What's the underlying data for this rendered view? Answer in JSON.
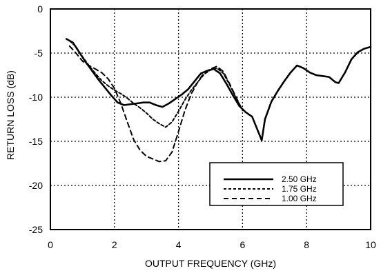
{
  "chart_data": {
    "type": "line",
    "xlabel": "OUTPUT FREQUENCY (GHz)",
    "ylabel": "RETURN LOSS (dB)",
    "xlim": [
      0,
      10
    ],
    "ylim": [
      -25,
      0
    ],
    "x_ticks": [
      "0",
      "2",
      "4",
      "6",
      "8",
      "10"
    ],
    "y_ticks": [
      "0",
      "-5",
      "-10",
      "-15",
      "-20",
      "-25"
    ],
    "grid": true,
    "legend_position": "bottom-right",
    "series": [
      {
        "name": "2.50 GHz",
        "style": "solid",
        "x": [
          0.5,
          0.7,
          0.9,
          1.1,
          1.3,
          1.5,
          1.7,
          1.9,
          2.1,
          2.3,
          2.5,
          2.7,
          2.9,
          3.1,
          3.3,
          3.5,
          3.7,
          3.9,
          4.1,
          4.3,
          4.5,
          4.7,
          4.9,
          5.1,
          5.3,
          5.5,
          5.7,
          5.9,
          6.1,
          6.3,
          6.5,
          6.6,
          6.7,
          6.9,
          7.1,
          7.3,
          7.5,
          7.7,
          7.9,
          8.1,
          8.3,
          8.5,
          8.7,
          8.9,
          9.0,
          9.2,
          9.4,
          9.6,
          9.8,
          10.0
        ],
        "y": [
          -3.4,
          -3.8,
          -4.9,
          -6.0,
          -7.0,
          -8.0,
          -8.9,
          -9.8,
          -10.6,
          -10.9,
          -10.8,
          -10.7,
          -10.6,
          -10.6,
          -10.9,
          -11.1,
          -10.7,
          -10.2,
          -9.7,
          -9.1,
          -8.2,
          -7.3,
          -7.0,
          -6.8,
          -7.3,
          -8.5,
          -9.8,
          -11.0,
          -11.7,
          -12.2,
          -14.0,
          -14.9,
          -12.5,
          -10.5,
          -9.3,
          -8.2,
          -7.2,
          -6.4,
          -6.7,
          -7.2,
          -7.5,
          -7.6,
          -7.7,
          -8.3,
          -8.4,
          -7.2,
          -5.7,
          -4.9,
          -4.5,
          -4.3
        ]
      },
      {
        "name": "1.75 GHz",
        "style": "dotted",
        "x": [
          0.6,
          0.8,
          1.0,
          1.2,
          1.4,
          1.6,
          1.8,
          2.0,
          2.2,
          2.4,
          2.6,
          2.8,
          3.0,
          3.2,
          3.4,
          3.6,
          3.8,
          4.0,
          4.2,
          4.4,
          4.6,
          4.8,
          5.0,
          5.2,
          5.4,
          5.6,
          5.8,
          6.0
        ],
        "y": [
          -3.6,
          -4.3,
          -5.4,
          -6.4,
          -7.3,
          -8.1,
          -8.7,
          -9.2,
          -9.6,
          -10.1,
          -10.7,
          -11.2,
          -11.8,
          -12.5,
          -13.0,
          -13.4,
          -12.8,
          -11.6,
          -10.3,
          -9.2,
          -8.3,
          -7.4,
          -6.9,
          -6.7,
          -7.3,
          -8.6,
          -10.1,
          -11.5
        ]
      },
      {
        "name": "1.00 GHz",
        "style": "dashed",
        "x": [
          0.6,
          0.8,
          1.0,
          1.2,
          1.4,
          1.6,
          1.8,
          2.0,
          2.2,
          2.4,
          2.6,
          2.8,
          3.0,
          3.2,
          3.4,
          3.6,
          3.8,
          4.0,
          4.2,
          4.4,
          4.6,
          4.8,
          5.0,
          5.2,
          5.4,
          5.6,
          5.8,
          6.0
        ],
        "y": [
          -4.2,
          -5.0,
          -5.9,
          -6.4,
          -6.8,
          -7.2,
          -7.9,
          -9.0,
          -10.7,
          -12.8,
          -14.8,
          -16.0,
          -16.7,
          -17.0,
          -17.3,
          -17.2,
          -16.2,
          -13.9,
          -11.5,
          -9.6,
          -8.3,
          -7.2,
          -6.8,
          -6.5,
          -7.1,
          -8.5,
          -10.0,
          -11.5
        ]
      }
    ]
  }
}
